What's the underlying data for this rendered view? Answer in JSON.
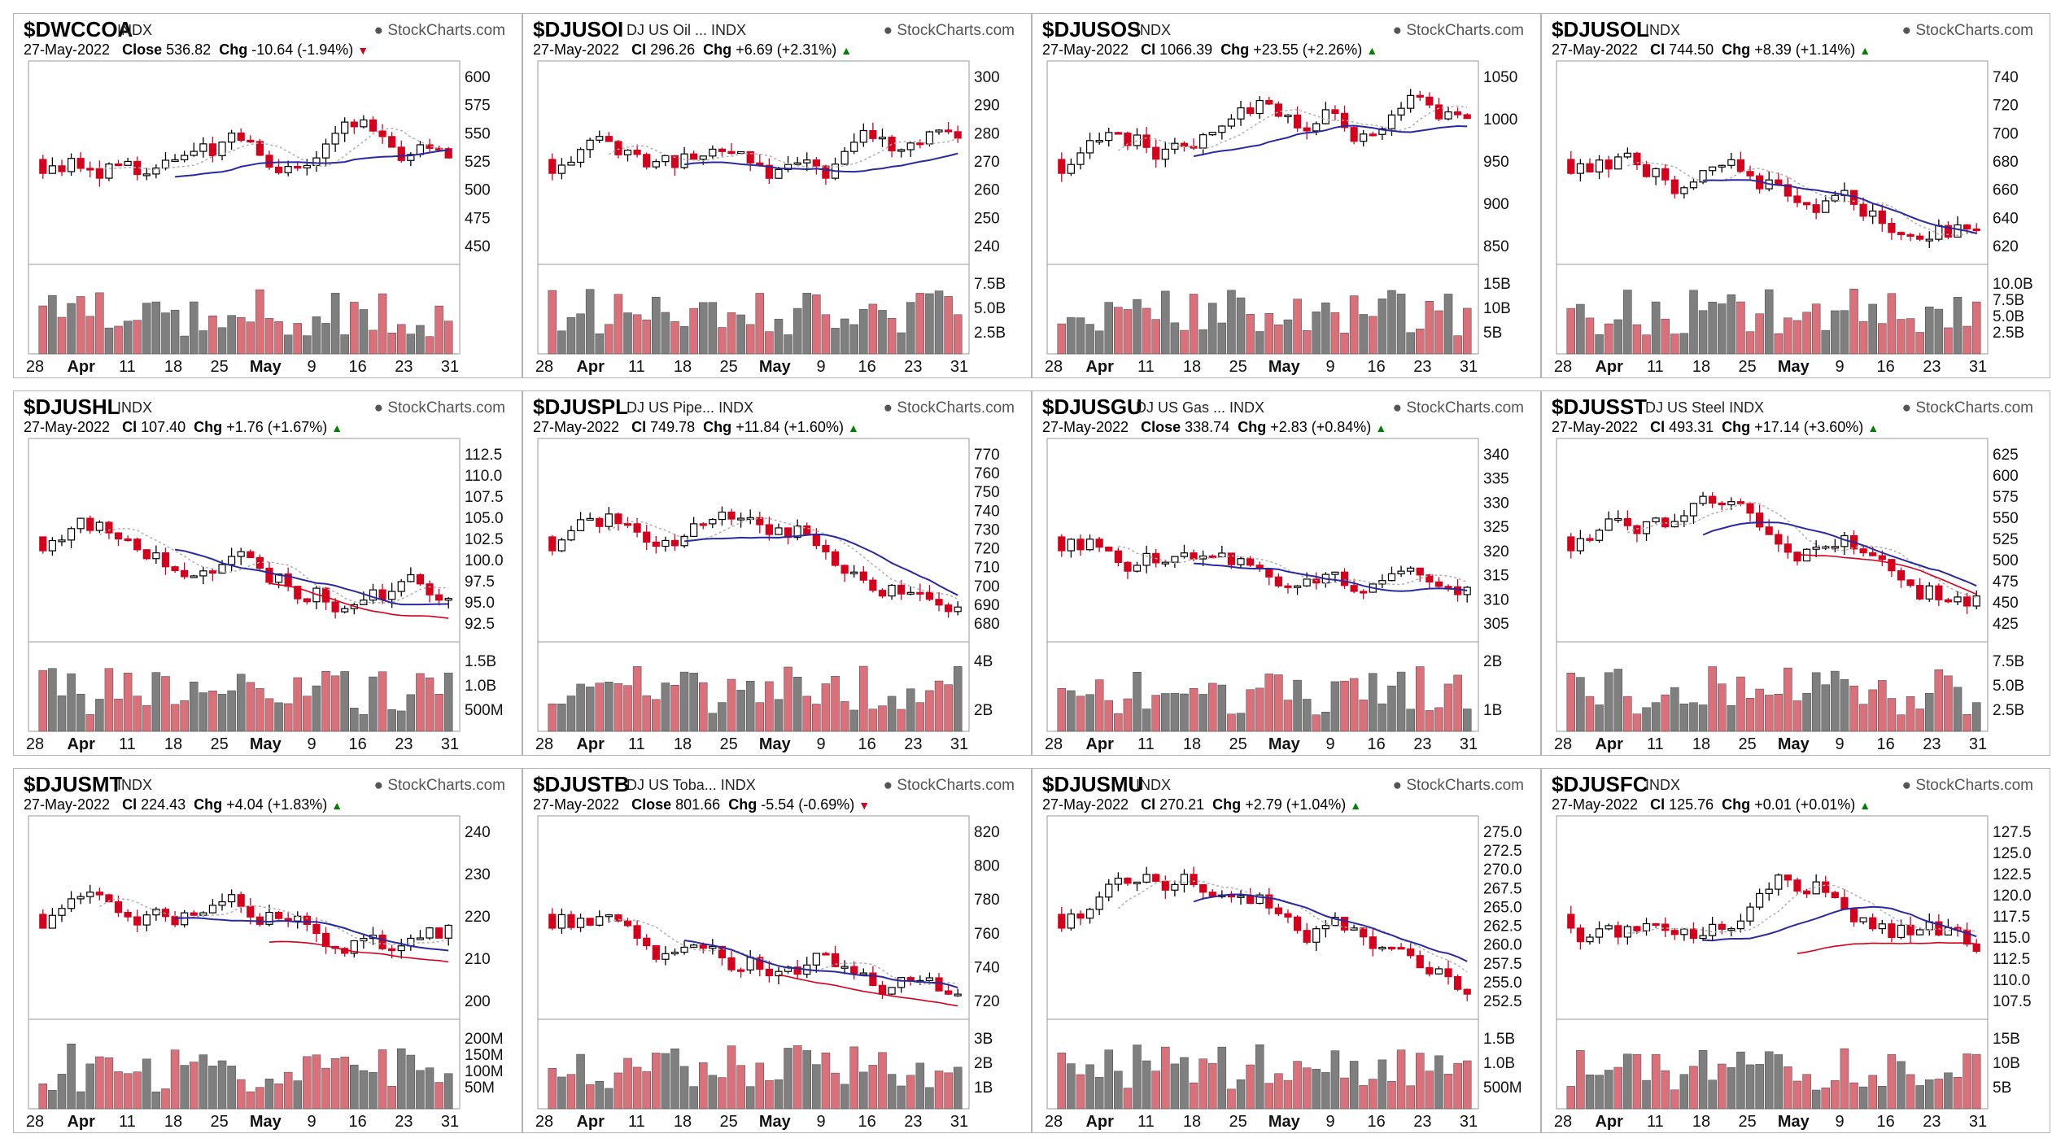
{
  "panels": [
    {
      "symbol": "$DWCCOA",
      "name": "",
      "exch": "INDX",
      "brand": "StockCharts.com",
      "date": "27-May-2022",
      "close_label": "Close",
      "close": "536.82",
      "chg": "-10.64 (-1.94%)",
      "dir": "down",
      "yticks": [
        "600",
        "575",
        "550",
        "525",
        "500",
        "475",
        "450"
      ],
      "vticks": [],
      "x": [
        "28",
        "Apr",
        "11",
        "18",
        "25",
        "May",
        "9",
        "16",
        "23",
        "31"
      ],
      "ma_red": false,
      "ma_blue": true
    },
    {
      "symbol": "$DJUSOI",
      "name": "DJ US Oil ...",
      "exch": "INDX",
      "brand": "StockCharts.com",
      "date": "27-May-2022",
      "close_label": "Cl",
      "close": "296.26",
      "chg": "+6.69 (+2.31%)",
      "dir": "up",
      "yticks": [
        "300",
        "290",
        "280",
        "270",
        "260",
        "250",
        "240"
      ],
      "vticks": [
        "7.5B",
        "5.0B",
        "2.5B"
      ],
      "x": [
        "28",
        "Apr",
        "11",
        "18",
        "25",
        "May",
        "9",
        "16",
        "23",
        "31"
      ],
      "ma_red": false,
      "ma_blue": true
    },
    {
      "symbol": "$DJUSOS",
      "name": "",
      "exch": "INDX",
      "brand": "StockCharts.com",
      "date": "27-May-2022",
      "close_label": "Cl",
      "close": "1066.39",
      "chg": "+23.55 (+2.26%)",
      "dir": "up",
      "yticks": [
        "1050",
        "1000",
        "950",
        "900",
        "850"
      ],
      "vticks": [
        "15B",
        "10B",
        "5B"
      ],
      "x": [
        "28",
        "Apr",
        "11",
        "18",
        "25",
        "May",
        "9",
        "16",
        "23",
        "31"
      ],
      "ma_red": false,
      "ma_blue": true
    },
    {
      "symbol": "$DJUSOL",
      "name": "",
      "exch": "INDX",
      "brand": "StockCharts.com",
      "date": "27-May-2022",
      "close_label": "Cl",
      "close": "744.50",
      "chg": "+8.39 (+1.14%)",
      "dir": "up",
      "yticks": [
        "740",
        "720",
        "700",
        "680",
        "660",
        "640",
        "620"
      ],
      "vticks": [
        "10.0B",
        "7.5B",
        "5.0B",
        "2.5B"
      ],
      "x": [
        "28",
        "Apr",
        "11",
        "18",
        "25",
        "May",
        "9",
        "16",
        "23",
        "31"
      ],
      "ma_red": false,
      "ma_blue": true
    },
    {
      "symbol": "$DJUSHL",
      "name": "",
      "exch": "INDX",
      "brand": "StockCharts.com",
      "date": "27-May-2022",
      "close_label": "Cl",
      "close": "107.40",
      "chg": "+1.76 (+1.67%)",
      "dir": "up",
      "yticks": [
        "112.5",
        "110.0",
        "107.5",
        "105.0",
        "102.5",
        "100.0",
        "97.5",
        "95.0",
        "92.5"
      ],
      "vticks": [
        "1.5B",
        "1.0B",
        "500M"
      ],
      "x": [
        "28",
        "Apr",
        "11",
        "18",
        "25",
        "May",
        "9",
        "16",
        "23",
        "31"
      ],
      "ma_red": true,
      "ma_blue": true
    },
    {
      "symbol": "$DJUSPL",
      "name": "DJ US Pipe...",
      "exch": "INDX",
      "brand": "StockCharts.com",
      "date": "27-May-2022",
      "close_label": "Cl",
      "close": "749.78",
      "chg": "+11.84 (+1.60%)",
      "dir": "up",
      "yticks": [
        "770",
        "760",
        "750",
        "740",
        "730",
        "720",
        "710",
        "700",
        "690",
        "680"
      ],
      "vticks": [
        "4B",
        "2B"
      ],
      "x": [
        "28",
        "Apr",
        "11",
        "18",
        "25",
        "May",
        "9",
        "16",
        "23",
        "31"
      ],
      "ma_red": false,
      "ma_blue": true
    },
    {
      "symbol": "$DJUSGU",
      "name": "DJ US Gas ...",
      "exch": "INDX",
      "brand": "StockCharts.com",
      "date": "27-May-2022",
      "close_label": "Close",
      "close": "338.74",
      "chg": "+2.83 (+0.84%)",
      "dir": "up",
      "yticks": [
        "340",
        "335",
        "330",
        "325",
        "320",
        "315",
        "310",
        "305"
      ],
      "vticks": [
        "2B",
        "1B"
      ],
      "x": [
        "28",
        "Apr",
        "11",
        "18",
        "25",
        "May",
        "9",
        "16",
        "23",
        "31"
      ],
      "ma_red": false,
      "ma_blue": true
    },
    {
      "symbol": "$DJUSST",
      "name": "DJ US Steel",
      "exch": "INDX",
      "brand": "StockCharts.com",
      "date": "27-May-2022",
      "close_label": "Cl",
      "close": "493.31",
      "chg": "+17.14 (+3.60%)",
      "dir": "up",
      "yticks": [
        "625",
        "600",
        "575",
        "550",
        "525",
        "500",
        "475",
        "450",
        "425"
      ],
      "vticks": [
        "7.5B",
        "5.0B",
        "2.5B"
      ],
      "x": [
        "28",
        "Apr",
        "11",
        "18",
        "25",
        "May",
        "9",
        "16",
        "23",
        "31"
      ],
      "ma_red": true,
      "ma_blue": true
    },
    {
      "symbol": "$DJUSMT",
      "name": "",
      "exch": "INDX",
      "brand": "StockCharts.com",
      "date": "27-May-2022",
      "close_label": "Cl",
      "close": "224.43",
      "chg": "+4.04 (+1.83%)",
      "dir": "up",
      "yticks": [
        "240",
        "230",
        "220",
        "210",
        "200"
      ],
      "vticks": [
        "200M",
        "150M",
        "100M",
        "50M"
      ],
      "x": [
        "28",
        "Apr",
        "11",
        "18",
        "25",
        "May",
        "9",
        "16",
        "23",
        "31"
      ],
      "ma_red": true,
      "ma_blue": true
    },
    {
      "symbol": "$DJUSTB",
      "name": "DJ US Toba...",
      "exch": "INDX",
      "brand": "StockCharts.com",
      "date": "27-May-2022",
      "close_label": "Close",
      "close": "801.66",
      "chg": "-5.54 (-0.69%)",
      "dir": "down",
      "yticks": [
        "820",
        "800",
        "780",
        "760",
        "740",
        "720"
      ],
      "vticks": [
        "3B",
        "2B",
        "1B"
      ],
      "x": [
        "28",
        "Apr",
        "11",
        "18",
        "25",
        "May",
        "9",
        "16",
        "23",
        "31"
      ],
      "ma_red": true,
      "ma_blue": true
    },
    {
      "symbol": "$DJUSMU",
      "name": "",
      "exch": "INDX",
      "brand": "StockCharts.com",
      "date": "27-May-2022",
      "close_label": "Cl",
      "close": "270.21",
      "chg": "+2.79 (+1.04%)",
      "dir": "up",
      "yticks": [
        "275.0",
        "272.5",
        "270.0",
        "267.5",
        "265.0",
        "262.5",
        "260.0",
        "257.5",
        "255.0",
        "252.5"
      ],
      "vticks": [
        "1.5B",
        "1.0B",
        "500M"
      ],
      "x": [
        "28",
        "Apr",
        "11",
        "18",
        "25",
        "May",
        "9",
        "16",
        "23",
        "31"
      ],
      "ma_red": false,
      "ma_blue": true
    },
    {
      "symbol": "$DJUSFC",
      "name": "",
      "exch": "INDX",
      "brand": "StockCharts.com",
      "date": "27-May-2022",
      "close_label": "Cl",
      "close": "125.76",
      "chg": "+0.01 (+0.01%)",
      "dir": "up",
      "yticks": [
        "127.5",
        "125.0",
        "122.5",
        "120.0",
        "117.5",
        "115.0",
        "112.5",
        "110.0",
        "107.5"
      ],
      "vticks": [
        "15B",
        "10B",
        "5B"
      ],
      "x": [
        "28",
        "Apr",
        "11",
        "18",
        "25",
        "May",
        "9",
        "16",
        "23",
        "31"
      ],
      "ma_red": true,
      "ma_blue": true
    }
  ],
  "colors": {
    "up": "#000000",
    "down": "#d4001c",
    "vol_up": "#7f7f7f",
    "vol_down": "#d9707a",
    "ma_blue": "#2a2aa0",
    "ma_red": "#d4001c",
    "ma_gray": "#b0b0b0"
  }
}
